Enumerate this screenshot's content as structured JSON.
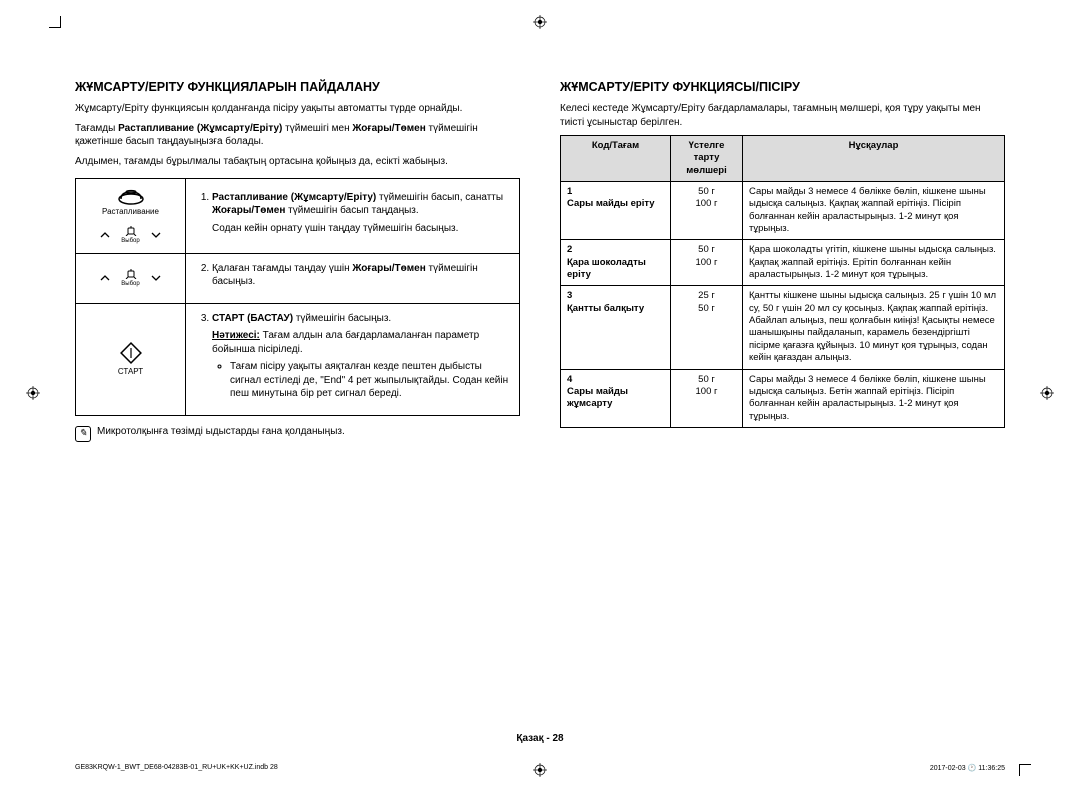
{
  "left": {
    "heading": "ЖҰМСАРТУ/ЕРІТУ ФУНКЦИЯЛАРЫН ПАЙДАЛАНУ",
    "p1": "Жұмсарту/Еріту функциясын қолданғанда пісіру уақыты автоматты түрде орнайды.",
    "p2_a": "Тағамды ",
    "p2_b": "Растапливание (Жұмсарту/Еріту)",
    "p2_c": " түймешігі мен ",
    "p2_d": "Жоғары/Төмен",
    "p2_e": " түймешігін қажетінше басып таңдауыңызға болады.",
    "p3": "Алдымен, тағамды бұрылмалы табақтың ортасына қойыңыз да, есікті жабыңыз.",
    "row1": {
      "icon_label": "Растапливание",
      "small_label": "Выбор",
      "text_a": "Растапливание (Жұмсарту/Еріту)",
      "text_b": " түймешігін басып, санатты ",
      "text_c": "Жоғары/Төмен",
      "text_d": " түймешігін басып таңдаңыз.",
      "text_e": "Содан кейін орнату үшін таңдау түймешігін басыңыз."
    },
    "row2": {
      "small_label": "Выбор",
      "text_a": "Қалаған тағамды таңдау үшін ",
      "text_b": "Жоғары/Төмен",
      "text_c": " түймешігін басыңыз."
    },
    "row3": {
      "icon_label": "СТАРТ",
      "text_a": "СТАРТ (БАСТАУ)",
      "text_b": " түймешігін басыңыз.",
      "text_c": "Нәтижесі:",
      "text_d": " Тағам алдын ала бағдарламаланған параметр бойынша пісіріледі.",
      "bullet": "Тағам пісіру уақыты аяқталған кезде пештен дыбысты сигнал естіледі де, \"End\" 4 рет жыпылықтайды. Содан кейін пеш минутына бір рет сигнал береді."
    },
    "note": "Микротолқынға төзімді ыдыстарды ғана қолданыңыз."
  },
  "right": {
    "heading": "ЖҰМСАРТУ/ЕРІТУ ФУНКЦИЯСЫ/ПІСІРУ",
    "intro": "Келесі кестеде Жұмсарту/Еріту бағдарламалары, тағамның мөлшері, қоя тұру уақыты мен тиісті ұсыныстар берілген.",
    "headers": {
      "c1": "Код/Тағам",
      "c2": "Үстелге тарту мөлшері",
      "c3": "Нұсқаулар"
    },
    "rows": [
      {
        "code": "1",
        "name": "Сары майды еріту",
        "sizes": "50 г\n100 г",
        "instr": "Сары майды 3 немесе 4 бөлікке бөліп, кішкене шыны ыдысқа салыңыз. Қақпақ жаппай ерітіңіз. Пісіріп болғаннан кейін араластырыңыз. 1-2 минут қоя тұрыңыз."
      },
      {
        "code": "2",
        "name": "Қара шоколадты еріту",
        "sizes": "50 г\n100 г",
        "instr": "Қара шоколадты үгітіп, кішкене шыны ыдысқа салыңыз. Қақпақ жаппай ерітіңіз. Ерітіп болғаннан кейін араластырыңыз. 1-2 минут қоя тұрыңыз."
      },
      {
        "code": "3",
        "name": "Қантты балқыту",
        "sizes": "25 г\n50 г",
        "instr": "Қантты кішкене шыны ыдысқа салыңыз. 25 г үшін 10 мл су, 50 г үшін 20 мл су қосыңыз. Қақпақ жаппай ерітіңіз. Абайлап алыңыз, пеш қолғабын киіңіз! Қасықты немесе шанышқыны пайдаланып, карамель безендіргішті пісірме қағазға құйыңыз. 10 минут қоя тұрыңыз, содан кейін қағаздан алыңыз."
      },
      {
        "code": "4",
        "name": "Сары майды жұмсарту",
        "sizes": "50 г\n100 г",
        "instr": "Сары майды 3 немесе 4 бөлікке бөліп, кішкене шыны ыдысқа салыңыз. Бетін жаппай ерітіңіз. Пісіріп болғаннан кейін араластырыңыз. 1-2 минут қоя тұрыңыз."
      }
    ]
  },
  "footer": {
    "page_label": "Қазақ - 28",
    "file": "GE83KRQW-1_BWT_DE68-04283B-01_RU+UK+KK+UZ.indb   28",
    "timestamp": "2017-02-03   🕐 11:36:25"
  }
}
